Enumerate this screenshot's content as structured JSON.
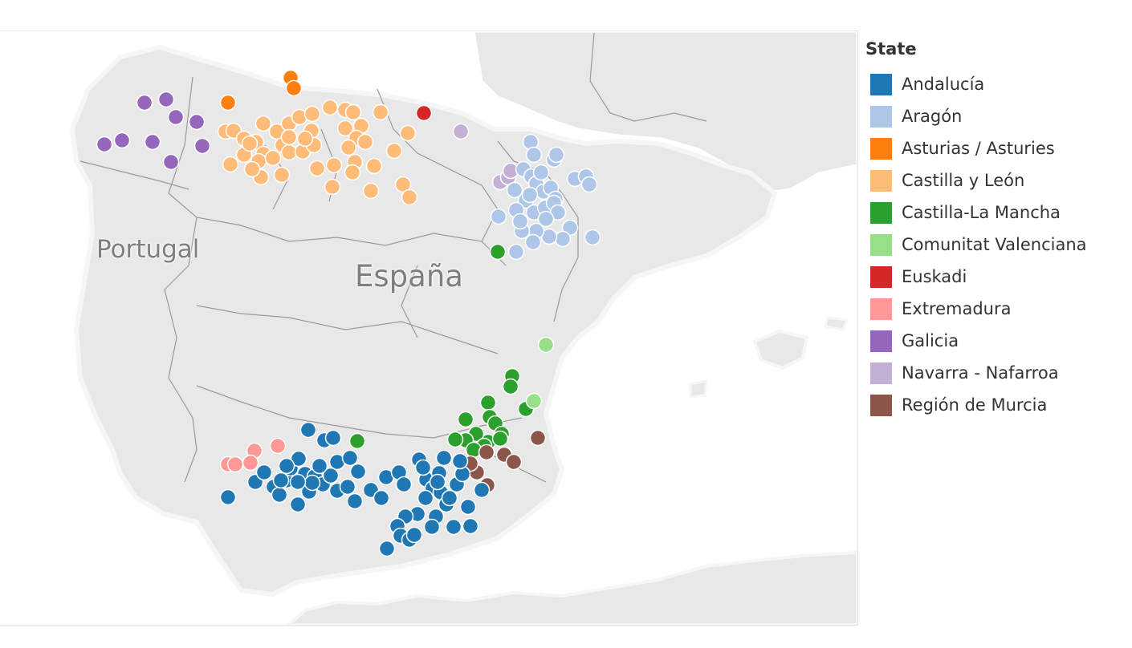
{
  "map": {
    "labels": {
      "portugal": "Portugal",
      "espana": "España"
    }
  },
  "legend": {
    "title": "State",
    "items": [
      {
        "key": "andalucia",
        "label": "Andalucía",
        "color": "#1f77b4"
      },
      {
        "key": "aragon",
        "label": "Aragón",
        "color": "#aec7e8"
      },
      {
        "key": "asturias",
        "label": "Asturias / Asturies",
        "color": "#ff7f0e"
      },
      {
        "key": "castilla_leon",
        "label": "Castilla y León",
        "color": "#ffbb78"
      },
      {
        "key": "castilla_mancha",
        "label": "Castilla-La Mancha",
        "color": "#2ca02c"
      },
      {
        "key": "valenciana",
        "label": "Comunitat Valenciana",
        "color": "#98df8a"
      },
      {
        "key": "euskadi",
        "label": "Euskadi",
        "color": "#d62728"
      },
      {
        "key": "extremadura",
        "label": "Extremadura",
        "color": "#ff9896"
      },
      {
        "key": "galicia",
        "label": "Galicia",
        "color": "#9467bd"
      },
      {
        "key": "navarra",
        "label": "Navarra - Nafarroa",
        "color": "#c5b0d5"
      },
      {
        "key": "murcia",
        "label": "Región de Murcia",
        "color": "#8c564b"
      }
    ]
  }
}
